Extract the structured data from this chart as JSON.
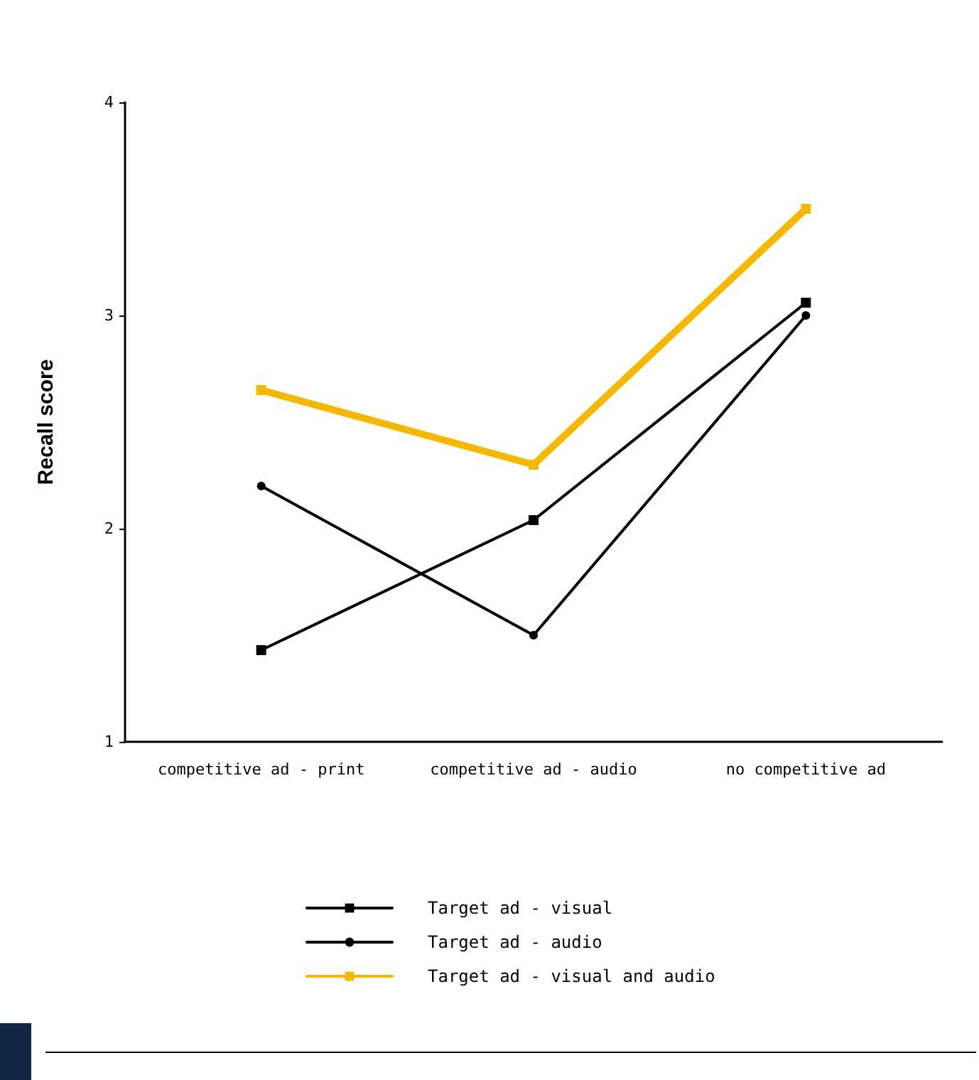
{
  "chart_data": {
    "type": "line",
    "ylabel": "Recall score",
    "categories": [
      "competitive ad - print",
      "competitive ad - audio",
      "no competitive ad"
    ],
    "series": [
      {
        "name": "Target ad - visual",
        "color": "#000000",
        "marker": "square",
        "values": [
          1.43,
          2.04,
          3.06
        ]
      },
      {
        "name": "Target ad - audio",
        "color": "#000000",
        "marker": "circle",
        "values": [
          2.2,
          1.5,
          3.0
        ]
      },
      {
        "name": "Target ad - visual and audio",
        "color": "#f5b800",
        "marker": "square",
        "values": [
          2.65,
          2.3,
          3.5
        ]
      }
    ],
    "ylim": [
      1,
      4
    ],
    "yticks": [
      1,
      2,
      3,
      4
    ],
    "grid": false,
    "legend": "bottom",
    "line_style": "solid"
  }
}
